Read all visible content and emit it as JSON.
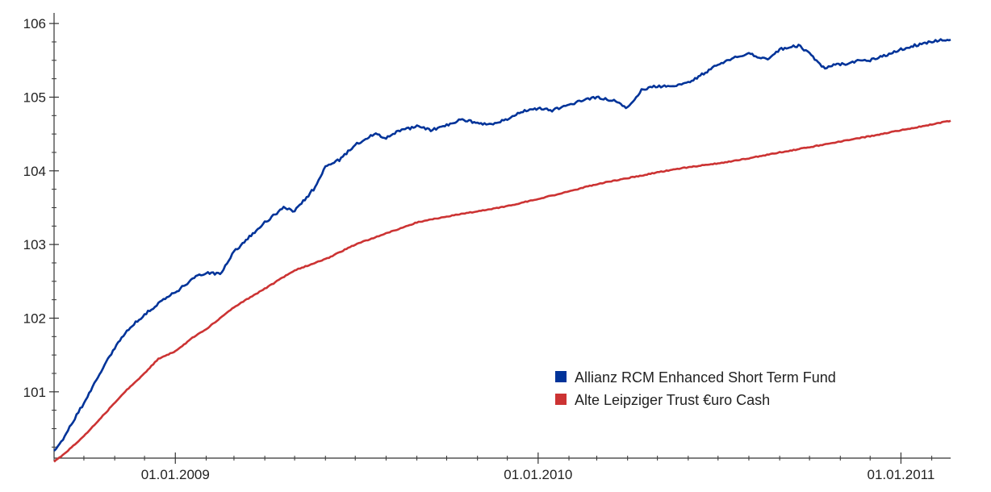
{
  "chart_data": {
    "type": "line",
    "title": "",
    "xlabel": "",
    "ylabel": "",
    "x_range": [
      "2008-09-01",
      "2011-02-20"
    ],
    "ylim": [
      100.1,
      106.1
    ],
    "y_ticks": [
      101,
      102,
      103,
      104,
      105,
      106
    ],
    "y_tick_labels": [
      "101",
      "102",
      "103",
      "104",
      "105",
      "106"
    ],
    "x_ticks": [
      "2009-01-01",
      "2010-01-01",
      "2011-01-01"
    ],
    "x_tick_labels": [
      "01.01.2009",
      "01.01.2010",
      "01.01.2011"
    ],
    "grid": false,
    "legend_position": "bottom-right",
    "series": [
      {
        "name": "Allianz RCM Enhanced Short Term Fund",
        "color": "#003399",
        "x": [
          "2008-09-01",
          "2008-09-10",
          "2008-09-20",
          "2008-10-01",
          "2008-10-15",
          "2008-11-01",
          "2008-11-15",
          "2008-12-01",
          "2008-12-15",
          "2009-01-01",
          "2009-01-20",
          "2009-02-01",
          "2009-02-15",
          "2009-03-01",
          "2009-03-20",
          "2009-04-01",
          "2009-04-20",
          "2009-05-01",
          "2009-05-20",
          "2009-06-01",
          "2009-06-15",
          "2009-07-01",
          "2009-07-20",
          "2009-08-01",
          "2009-08-15",
          "2009-09-01",
          "2009-09-15",
          "2009-10-01",
          "2009-10-15",
          "2009-11-01",
          "2009-11-15",
          "2009-12-01",
          "2009-12-15",
          "2010-01-01",
          "2010-01-15",
          "2010-02-01",
          "2010-02-15",
          "2010-03-01",
          "2010-03-20",
          "2010-04-01",
          "2010-04-15",
          "2010-05-01",
          "2010-05-15",
          "2010-06-01",
          "2010-06-20",
          "2010-07-01",
          "2010-07-20",
          "2010-08-01",
          "2010-08-20",
          "2010-09-01",
          "2010-09-20",
          "2010-10-01",
          "2010-10-15",
          "2010-11-01",
          "2010-11-10",
          "2010-11-20",
          "2010-12-01",
          "2010-12-20",
          "2011-01-01",
          "2011-01-20",
          "2011-02-10",
          "2011-02-20"
        ],
        "values": [
          100.2,
          100.35,
          100.6,
          100.85,
          101.2,
          101.6,
          101.85,
          102.05,
          102.2,
          102.35,
          102.55,
          102.62,
          102.6,
          102.9,
          103.15,
          103.3,
          103.5,
          103.45,
          103.75,
          104.05,
          104.15,
          104.35,
          104.5,
          104.45,
          104.55,
          104.6,
          104.55,
          104.62,
          104.7,
          104.65,
          104.62,
          104.7,
          104.8,
          104.85,
          104.82,
          104.9,
          104.95,
          105.0,
          104.95,
          104.85,
          105.1,
          105.15,
          105.15,
          105.2,
          105.35,
          105.45,
          105.55,
          105.6,
          105.5,
          105.65,
          105.7,
          105.6,
          105.4,
          105.45,
          105.45,
          105.5,
          105.5,
          105.58,
          105.65,
          105.72,
          105.78,
          105.78
        ]
      },
      {
        "name": "Alte Leipziger Trust €uro Cash",
        "color": "#cc3333",
        "x": [
          "2008-09-01",
          "2008-09-15",
          "2008-10-01",
          "2008-10-15",
          "2008-11-01",
          "2008-11-15",
          "2008-12-01",
          "2008-12-15",
          "2009-01-01",
          "2009-01-20",
          "2009-02-01",
          "2009-03-01",
          "2009-04-01",
          "2009-05-01",
          "2009-06-01",
          "2009-07-01",
          "2009-08-01",
          "2009-09-01",
          "2009-10-01",
          "2009-11-01",
          "2009-12-01",
          "2010-01-01",
          "2010-02-01",
          "2010-03-01",
          "2010-04-01",
          "2010-05-01",
          "2010-06-01",
          "2010-07-01",
          "2010-08-01",
          "2010-09-01",
          "2010-10-01",
          "2010-11-01",
          "2010-12-01",
          "2011-01-01",
          "2011-02-01",
          "2011-02-20"
        ],
        "values": [
          100.05,
          100.2,
          100.4,
          100.6,
          100.85,
          101.05,
          101.25,
          101.45,
          101.55,
          101.75,
          101.85,
          102.15,
          102.4,
          102.65,
          102.8,
          103.0,
          103.15,
          103.3,
          103.38,
          103.45,
          103.52,
          103.62,
          103.72,
          103.82,
          103.9,
          103.98,
          104.05,
          104.1,
          104.17,
          104.25,
          104.32,
          104.4,
          104.47,
          104.55,
          104.63,
          104.68
        ]
      }
    ]
  }
}
